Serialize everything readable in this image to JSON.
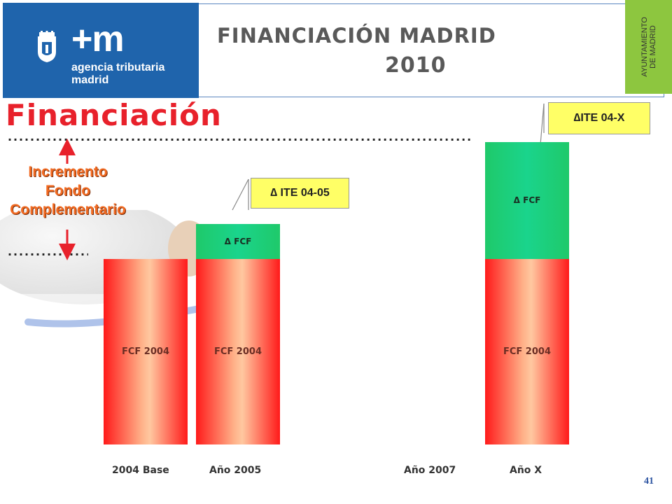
{
  "header": {
    "logo": {
      "mark": "+m",
      "subtitle": "agencia tributaria\nmadrid",
      "crest": "madrid-crest-icon"
    },
    "title": "FINANCIACIÓN  MADRID",
    "year": "2010",
    "side_tab": {
      "line1": "AYUNTAMIENTO",
      "line2": "DE MADRID"
    }
  },
  "slide": {
    "heading": "Financiación",
    "increment_label": [
      "Incremento",
      "Fondo",
      "Complementario"
    ],
    "dots_long": "................................................................................................................................",
    "dots_short": "....................",
    "page_number": "41"
  },
  "chart_data": {
    "type": "bar",
    "stacked": true,
    "categories": [
      "2004 Base",
      "Año 2005",
      "Año 2007",
      "Año X"
    ],
    "segments": [
      {
        "category": "2004 Base",
        "stack": [
          {
            "label": "FCF 2004",
            "value": 1.0
          }
        ]
      },
      {
        "category": "Año 2005",
        "stack": [
          {
            "label": "FCF 2004",
            "value": 1.0
          },
          {
            "label": "Δ FCF",
            "value": 0.19
          }
        ]
      },
      {
        "category": "Año 2007",
        "stack": []
      },
      {
        "category": "Año X",
        "stack": [
          {
            "label": "FCF 2004",
            "value": 1.0
          },
          {
            "label": "Δ FCF",
            "value": 0.63
          }
        ]
      }
    ],
    "callouts": [
      {
        "category": "Año 2005",
        "text": "∆ ITE 04-05"
      },
      {
        "category": "Año X",
        "text": "∆ITE 04-X"
      }
    ],
    "colors": {
      "base": "#ff1a1a",
      "delta": "#1ad48c",
      "callout": "#ffff66"
    }
  },
  "colors": {
    "brand_blue": "#1f64ac",
    "ayto_green": "#8dc63f",
    "accent_red": "#e8212b",
    "increment_orange": "#f26a21"
  }
}
